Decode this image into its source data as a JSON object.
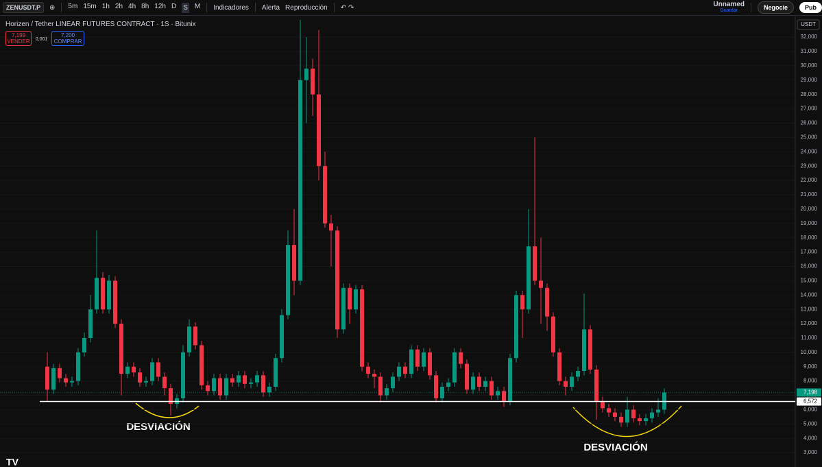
{
  "toolbar": {
    "symbol": "ZENUSDT.P",
    "intervals": [
      "5m",
      "15m",
      "1h",
      "2h",
      "4h",
      "8h",
      "12h",
      "D",
      "S",
      "M"
    ],
    "indicators": "Indicadores",
    "alert": "Alerta",
    "replay": "Reproducción",
    "layout_name": "Unnamed",
    "save": "Guardar",
    "trade": "Negocie",
    "publish": "Pub"
  },
  "legend": {
    "title": "Horizen / Tether LINEAR FUTURES CONTRACT · 1S · Bitunix",
    "sell_price": "7,199",
    "sell": "VENDER",
    "spread": "0,001",
    "buy_price": "7,200",
    "buy": "COMPRAR"
  },
  "chart_data": {
    "type": "candlestick",
    "currency": "USDT",
    "up_color": "#089981",
    "down_color": "#f23645",
    "ylim": [
      2,
      33.25
    ],
    "yticks": [
      {
        "value": 3,
        "label": "3,000"
      },
      {
        "value": 4,
        "label": "4,000"
      },
      {
        "value": 5,
        "label": "5,000"
      },
      {
        "value": 6,
        "label": "6,000"
      },
      {
        "value": 7,
        "label": "7,000"
      },
      {
        "value": 8,
        "label": "8,000"
      },
      {
        "value": 9,
        "label": "9,000"
      },
      {
        "value": 10,
        "label": "10,000"
      },
      {
        "value": 11,
        "label": "11,000"
      },
      {
        "value": 12,
        "label": "12,000"
      },
      {
        "value": 13,
        "label": "13,000"
      },
      {
        "value": 14,
        "label": "14,000"
      },
      {
        "value": 15,
        "label": "15,000"
      },
      {
        "value": 16,
        "label": "16,000"
      },
      {
        "value": 17,
        "label": "17,000"
      },
      {
        "value": 18,
        "label": "18,000"
      },
      {
        "value": 19,
        "label": "19,000"
      },
      {
        "value": 20,
        "label": "20,000"
      },
      {
        "value": 21,
        "label": "21,000"
      },
      {
        "value": 22,
        "label": "22,000"
      },
      {
        "value": 23,
        "label": "23,000"
      },
      {
        "value": 24,
        "label": "24,000"
      },
      {
        "value": 25,
        "label": "25,000"
      },
      {
        "value": 26,
        "label": "26,000"
      },
      {
        "value": 27,
        "label": "27,000"
      },
      {
        "value": 28,
        "label": "28,000"
      },
      {
        "value": 29,
        "label": "29,000"
      },
      {
        "value": 30,
        "label": "30,000"
      },
      {
        "value": 31,
        "label": "31,000"
      },
      {
        "value": 32,
        "label": "32,000"
      }
    ],
    "open": [
      9.0,
      7.4,
      8.9,
      8.2,
      7.9,
      8.0,
      10.0,
      11.0,
      13.0,
      15.2,
      13.0,
      15.0,
      12.0,
      8.5,
      9.0,
      8.6,
      7.9,
      8.0,
      9.3,
      8.3,
      7.5,
      6.4,
      6.8,
      10.0,
      11.8,
      10.5,
      7.7,
      7.3,
      8.2,
      7.0,
      8.2,
      7.9,
      8.4,
      7.8,
      7.9,
      8.4,
      7.2,
      7.6,
      9.6,
      12.6,
      17.5,
      15.0,
      29.0,
      29.8,
      28.0,
      23.0,
      19.0,
      18.5,
      11.6,
      14.5,
      13.0,
      14.4,
      9.0,
      8.5,
      8.3,
      7.0,
      7.5,
      8.3,
      9.0,
      8.5,
      10.2,
      9.0,
      10.0,
      8.4,
      6.8,
      7.6,
      7.9,
      10.0,
      9.2,
      7.4,
      8.3,
      7.6,
      8.0,
      7.0,
      7.3,
      6.6,
      9.6,
      14.0,
      13.0,
      17.4,
      15.0,
      14.5,
      12.5,
      10.0,
      8.0,
      7.6,
      8.3,
      8.7,
      11.6,
      8.8,
      6.6,
      6.1,
      5.8,
      5.5,
      5.1,
      6.0,
      5.4,
      5.2,
      5.4,
      5.8,
      6.0
    ],
    "high": [
      10.0,
      9.2,
      9.2,
      8.5,
      8.3,
      10.3,
      11.4,
      14.0,
      18.5,
      15.6,
      15.4,
      15.3,
      12.3,
      9.3,
      9.3,
      8.9,
      8.3,
      9.6,
      9.6,
      8.6,
      7.8,
      7.1,
      10.5,
      12.3,
      12.1,
      10.8,
      8.0,
      8.5,
      8.5,
      8.5,
      8.5,
      8.7,
      8.7,
      8.2,
      8.7,
      8.7,
      7.9,
      9.9,
      13.0,
      18.5,
      20.0,
      33.2,
      32.0,
      30.5,
      32.5,
      24.0,
      19.6,
      18.8,
      14.8,
      14.8,
      14.7,
      14.7,
      9.3,
      8.8,
      8.6,
      7.8,
      8.6,
      9.3,
      9.3,
      10.5,
      10.5,
      10.3,
      10.3,
      8.7,
      7.9,
      8.2,
      10.3,
      10.3,
      9.5,
      8.6,
      8.6,
      8.3,
      8.3,
      7.6,
      7.6,
      9.9,
      14.3,
      14.3,
      20.0,
      25.0,
      18.0,
      14.8,
      12.8,
      10.3,
      8.3,
      8.6,
      9.0,
      14.1,
      11.9,
      9.1,
      6.9,
      6.4,
      6.1,
      5.8,
      6.9,
      6.3,
      5.7,
      5.7,
      6.1,
      6.8,
      7.5
    ],
    "low": [
      6.6,
      7.1,
      7.9,
      7.6,
      7.6,
      7.7,
      9.7,
      10.7,
      12.7,
      12.7,
      12.7,
      11.7,
      7.0,
      8.2,
      8.3,
      7.6,
      7.6,
      7.7,
      8.0,
      7.0,
      5.6,
      6.1,
      6.5,
      9.7,
      10.2,
      7.4,
      7.0,
      7.0,
      6.7,
      6.7,
      7.6,
      7.6,
      7.5,
      7.5,
      7.6,
      6.9,
      6.9,
      7.3,
      9.3,
      12.3,
      14.0,
      14.7,
      26.0,
      26.5,
      22.0,
      18.7,
      16.0,
      11.0,
      11.3,
      12.0,
      12.7,
      8.7,
      8.2,
      7.5,
      6.5,
      6.7,
      7.2,
      8.0,
      8.2,
      8.2,
      8.7,
      8.7,
      8.1,
      6.5,
      6.5,
      7.3,
      7.6,
      8.9,
      7.1,
      7.1,
      7.3,
      7.3,
      6.7,
      6.7,
      6.2,
      6.3,
      9.3,
      11.0,
      12.7,
      14.7,
      12.0,
      11.5,
      9.7,
      7.7,
      7.0,
      7.3,
      8.0,
      8.4,
      8.5,
      5.3,
      5.8,
      5.5,
      5.2,
      4.8,
      4.8,
      5.1,
      4.9,
      4.9,
      5.1,
      5.5,
      5.7
    ],
    "close": [
      7.4,
      8.9,
      8.2,
      7.9,
      8.0,
      10.0,
      11.0,
      13.0,
      15.2,
      13.0,
      15.0,
      12.0,
      8.5,
      9.0,
      8.6,
      7.9,
      8.0,
      9.3,
      8.3,
      7.5,
      6.4,
      6.8,
      10.0,
      11.8,
      10.5,
      7.7,
      7.3,
      8.2,
      7.0,
      8.2,
      7.9,
      8.4,
      7.8,
      7.9,
      8.4,
      7.2,
      7.6,
      9.6,
      12.6,
      17.5,
      15.0,
      29.0,
      29.8,
      28.0,
      23.0,
      19.0,
      18.5,
      11.6,
      14.5,
      13.0,
      14.4,
      9.0,
      8.5,
      8.3,
      7.0,
      7.5,
      8.3,
      9.0,
      8.5,
      10.2,
      9.0,
      10.0,
      8.4,
      6.8,
      7.6,
      7.9,
      10.0,
      9.2,
      7.4,
      8.3,
      7.6,
      8.0,
      7.0,
      7.3,
      6.6,
      9.6,
      14.0,
      13.0,
      17.4,
      15.0,
      14.5,
      12.5,
      10.0,
      8.0,
      7.6,
      8.3,
      8.7,
      11.6,
      8.8,
      6.6,
      6.1,
      5.8,
      5.5,
      5.1,
      6.0,
      5.4,
      5.2,
      5.4,
      5.8,
      6.0,
      7.198
    ],
    "last_price": {
      "value": 7.198,
      "label": "7,198"
    },
    "horizontal_line": {
      "value": 6.572,
      "label": "6,572",
      "color": "#ffffff"
    },
    "annotations": [
      "DESVIACIÓN",
      "DESVIACIÓN"
    ]
  }
}
